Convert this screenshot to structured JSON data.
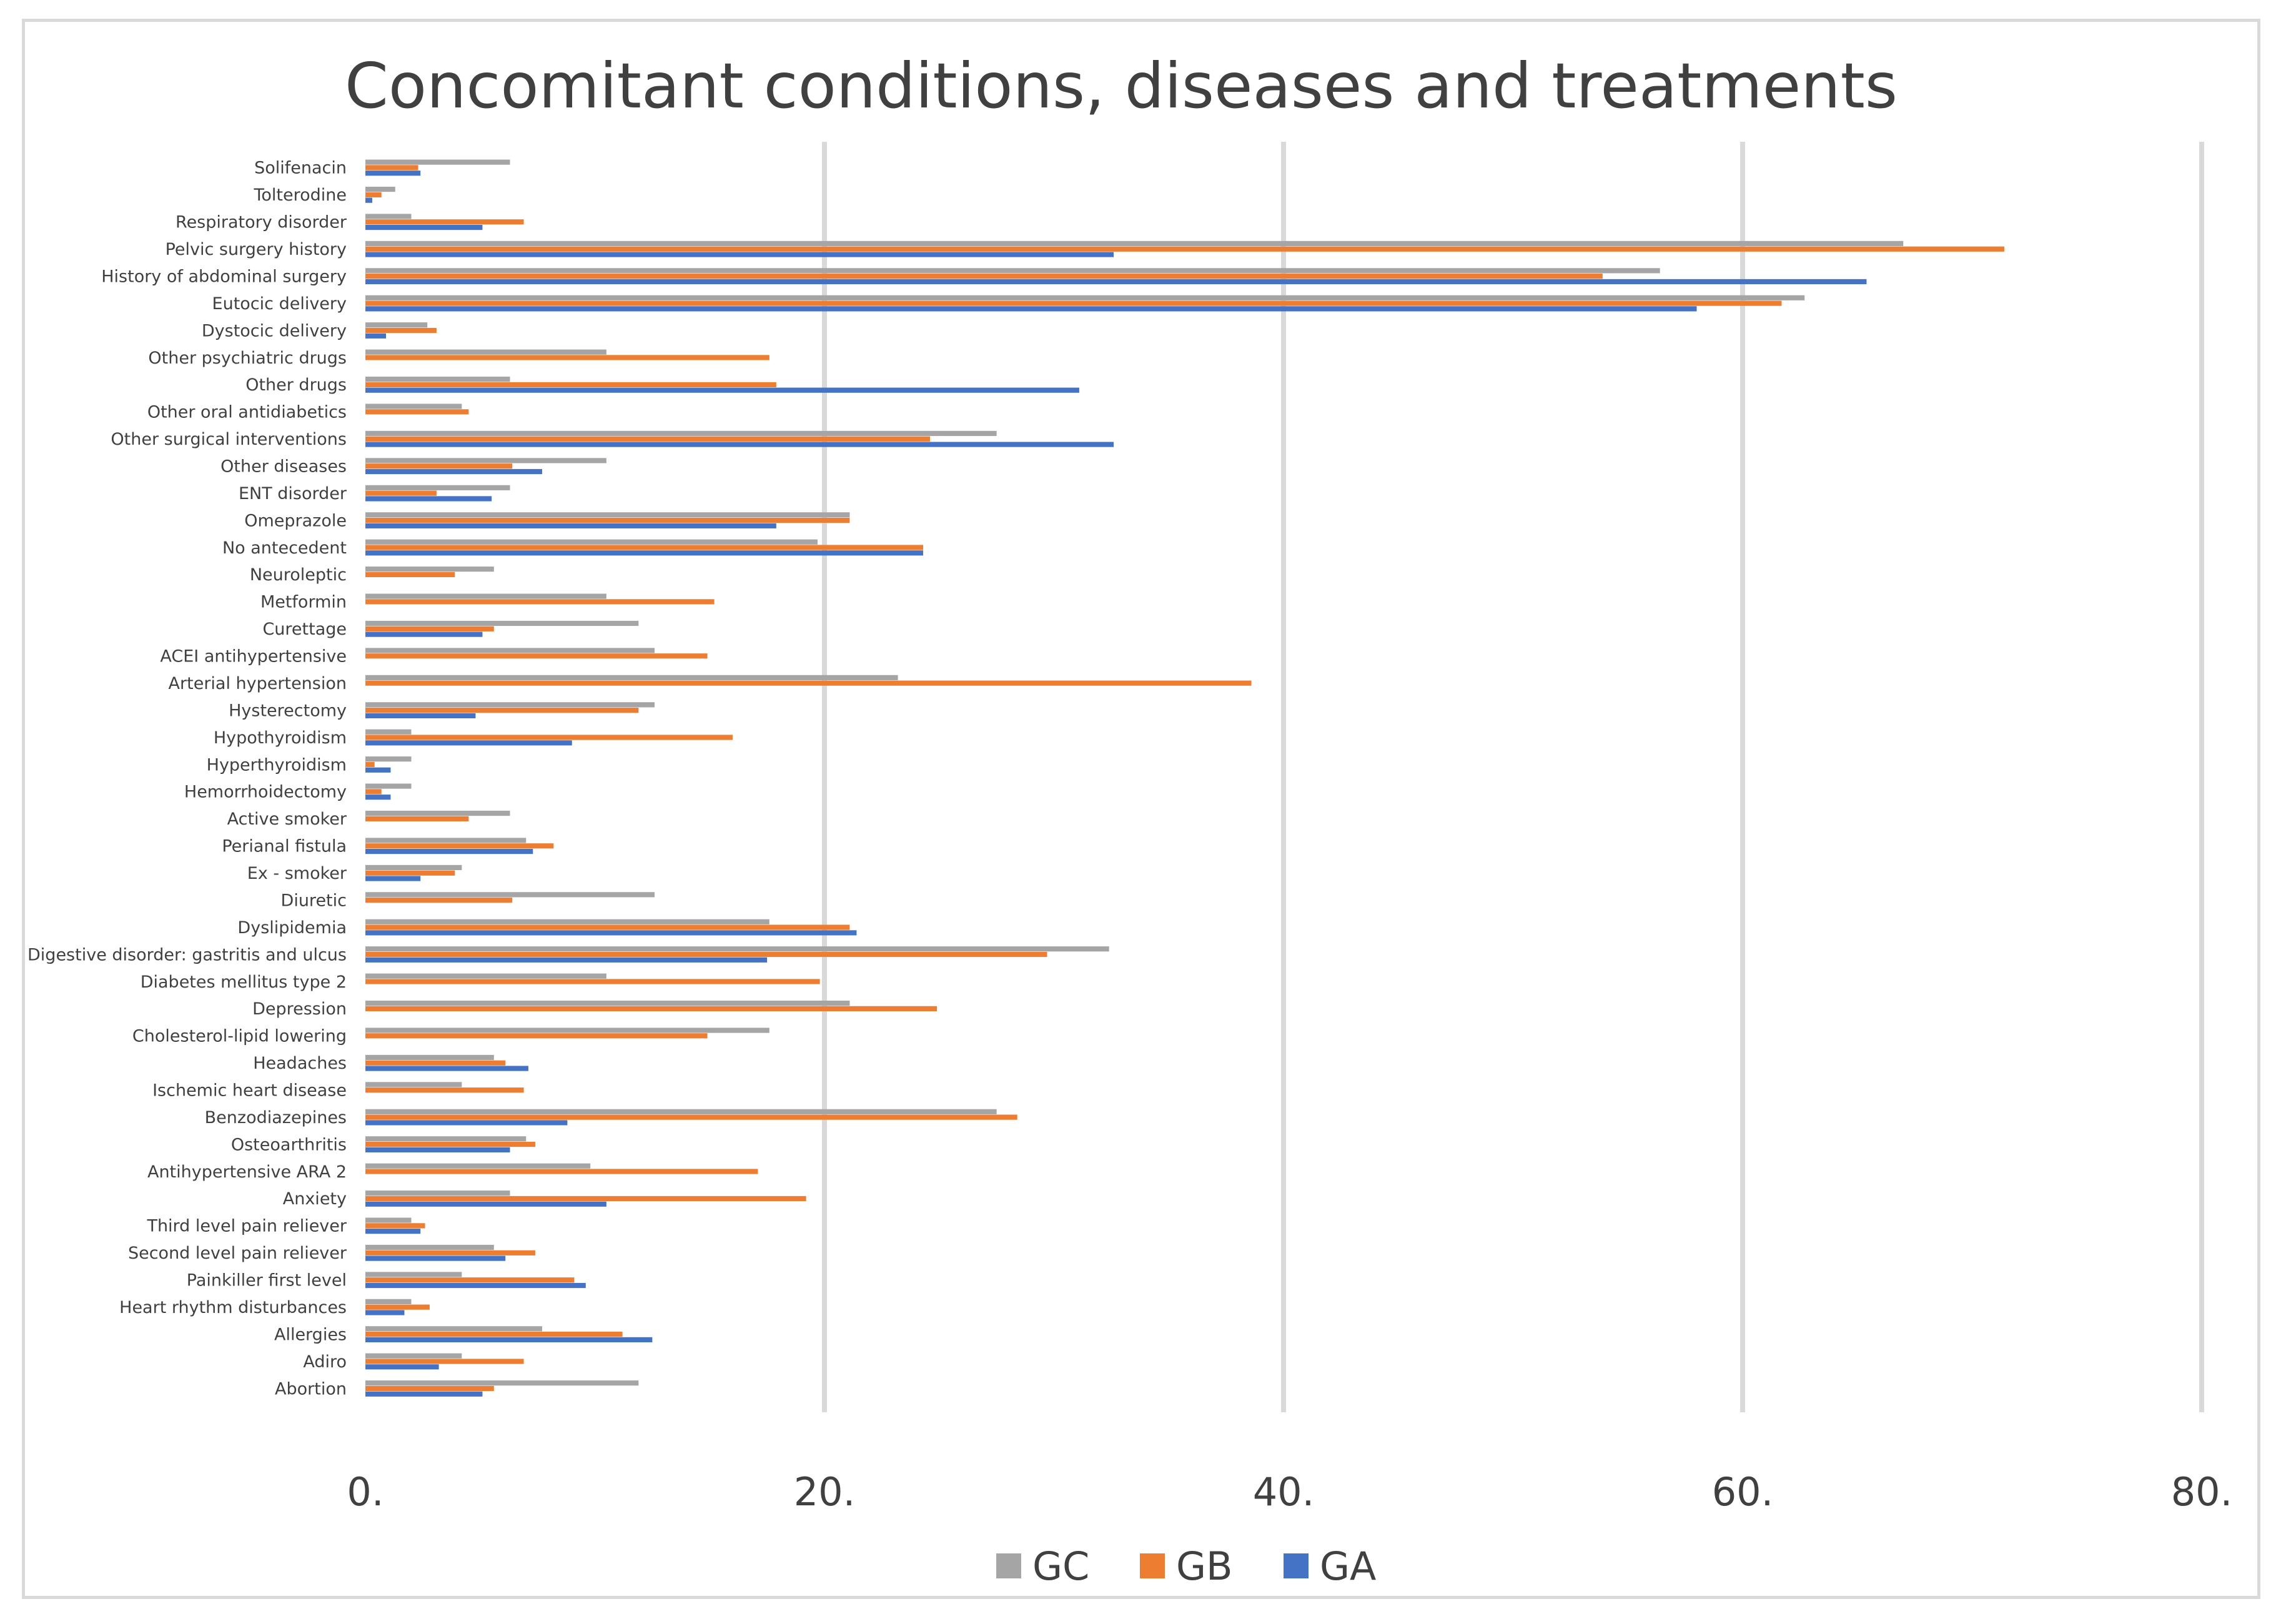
{
  "chart_data": {
    "type": "bar",
    "orientation": "horizontal",
    "title": "Concomitant conditions, diseases and treatments",
    "xlabel": "",
    "ylabel": "",
    "xlim": [
      0,
      80
    ],
    "x_ticks": [
      0,
      20,
      40,
      60,
      80
    ],
    "x_tick_labels": [
      "0.",
      "20.",
      "40.",
      "60.",
      "80."
    ],
    "grid": "vertical",
    "legend_position": "bottom",
    "categories": [
      "Solifenacin",
      "Tolterodine",
      "Respiratory disorder",
      "Pelvic surgery history",
      "History of abdominal surgery",
      "Eutocic delivery",
      "Dystocic delivery",
      "Other psychiatric drugs",
      "Other drugs",
      "Other oral antidiabetics",
      "Other surgical interventions",
      "Other diseases",
      "ENT disorder",
      "Omeprazole",
      "No antecedent",
      "Neuroleptic",
      "Metformin",
      "Curettage",
      "ACEI antihypertensive",
      "Arterial hypertension",
      "Hysterectomy",
      "Hypothyroidism",
      "Hyperthyroidism",
      "Hemorrhoidectomy",
      "Active smoker",
      "Perianal fistula",
      "Ex - smoker",
      "Diuretic",
      "Dyslipidemia",
      "Digestive disorder: gastritis and ulcus",
      "Diabetes mellitus type 2",
      "Depression",
      "Cholesterol-lipid lowering",
      "Headaches",
      "Ischemic heart disease",
      "Benzodiazepines",
      "Osteoarthritis",
      "Antihypertensive ARA 2",
      "Anxiety",
      "Third level pain reliever",
      "Second level pain reliever",
      "Painkiller first level",
      "Heart rhythm disturbances",
      "Allergies",
      "Adiro",
      "Abortion"
    ],
    "series": [
      {
        "name": "GC",
        "color": "#a5a5a5",
        "values": [
          6.3,
          1.3,
          2.0,
          67.0,
          56.4,
          62.7,
          2.7,
          10.5,
          6.3,
          4.2,
          27.5,
          10.5,
          6.3,
          21.1,
          19.7,
          5.6,
          10.5,
          11.9,
          12.6,
          23.2,
          12.6,
          2.0,
          2.0,
          2.0,
          6.3,
          7.0,
          4.2,
          12.6,
          17.6,
          32.4,
          10.5,
          21.1,
          17.6,
          5.6,
          4.2,
          27.5,
          7.0,
          9.8,
          6.3,
          2.0,
          5.6,
          4.2,
          2.0,
          7.7,
          4.2,
          11.9
        ]
      },
      {
        "name": "GB",
        "color": "#ed7d31",
        "values": [
          2.3,
          0.7,
          6.9,
          71.4,
          53.9,
          61.7,
          3.1,
          17.6,
          17.9,
          4.5,
          24.6,
          6.4,
          3.1,
          21.1,
          24.3,
          3.9,
          15.2,
          5.6,
          14.9,
          38.6,
          11.9,
          16.0,
          0.4,
          0.7,
          4.5,
          8.2,
          3.9,
          6.4,
          21.1,
          29.7,
          19.8,
          24.9,
          14.9,
          6.1,
          6.9,
          28.4,
          7.4,
          17.1,
          19.2,
          2.6,
          7.4,
          9.1,
          2.8,
          11.2,
          6.9,
          5.6
        ]
      },
      {
        "name": "GA",
        "color": "#4472c4",
        "values": [
          2.4,
          0.3,
          5.1,
          32.6,
          65.4,
          58.0,
          0.9,
          0.0,
          31.1,
          0.0,
          32.6,
          7.7,
          5.5,
          17.9,
          24.3,
          0.0,
          0.0,
          5.1,
          0.0,
          0.0,
          4.8,
          9.0,
          1.1,
          1.1,
          0.0,
          7.3,
          2.4,
          0.0,
          21.4,
          17.5,
          0.0,
          0.0,
          0.0,
          7.1,
          0.0,
          8.8,
          6.3,
          0.0,
          10.5,
          2.4,
          6.1,
          9.6,
          1.7,
          12.5,
          3.2,
          5.1
        ]
      }
    ]
  }
}
